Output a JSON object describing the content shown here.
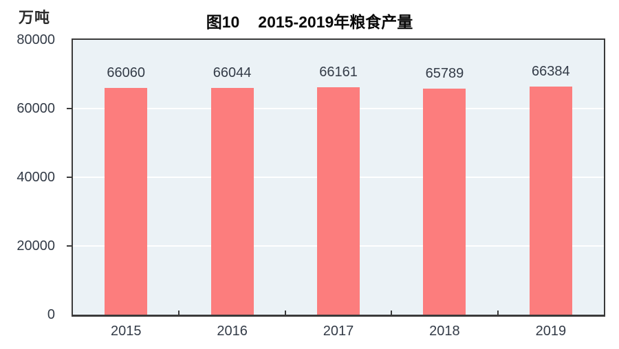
{
  "header": {
    "unit_label": "万吨",
    "title_prefix": "图10",
    "title_main": "2015-2019年粮食产量"
  },
  "chart_data": {
    "type": "bar",
    "title": "图10 2015-2019年粮食产量",
    "subtitle": "",
    "xlabel": "",
    "ylabel": "万吨",
    "categories": [
      "2015",
      "2016",
      "2017",
      "2018",
      "2019"
    ],
    "values": [
      66060,
      66044,
      66161,
      65789,
      66384
    ],
    "data_labels_shown": true,
    "ylim": [
      0,
      80000
    ],
    "ytick_interval": 20000,
    "ytick_labels_top_to_bottom": [
      "80000",
      "60000",
      "40000",
      "20000",
      "0"
    ],
    "grid": "horizontal gridlines on, white",
    "legend_position": "none",
    "colors": {
      "bar_fill": "#FC7D7D",
      "plot_background": "#EBF2F6",
      "gridline": "#FFFFFF",
      "axis_line": "#3A3A3A",
      "label_text": "#333B47",
      "title_text": "#0A0A0A"
    }
  }
}
